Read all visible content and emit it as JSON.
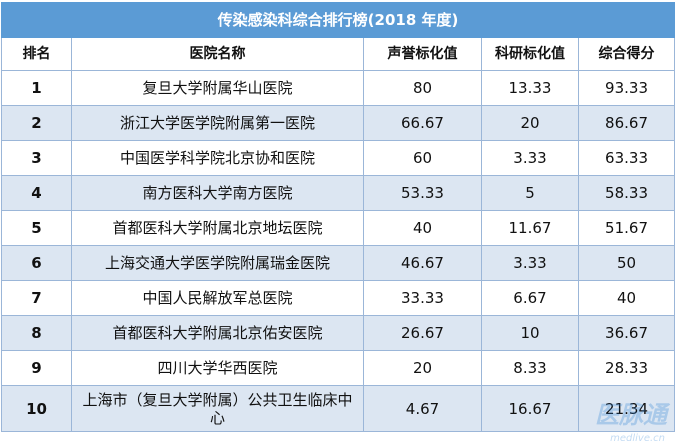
{
  "title": "传染感染科综合排行榜(2018 年度)",
  "headers": [
    "排名",
    "医院名称",
    "声誉标化值",
    "科研标化值",
    "综合得分"
  ],
  "rows": [
    {
      "rank": "1",
      "name": "复旦大学附属华山医院",
      "reputation": "80",
      "research": "13.33",
      "score": "93.33"
    },
    {
      "rank": "2",
      "name": "浙江大学医学院附属第一医院",
      "reputation": "66.67",
      "research": "20",
      "score": "86.67"
    },
    {
      "rank": "3",
      "name": "中国医学科学院北京协和医院",
      "reputation": "60",
      "research": "3.33",
      "score": "63.33"
    },
    {
      "rank": "4",
      "name": "南方医科大学南方医院",
      "reputation": "53.33",
      "research": "5",
      "score": "58.33"
    },
    {
      "rank": "5",
      "name": "首都医科大学附属北京地坛医院",
      "reputation": "40",
      "research": "11.67",
      "score": "51.67"
    },
    {
      "rank": "6",
      "name": "上海交通大学医学院附属瑞金医院",
      "reputation": "46.67",
      "research": "3.33",
      "score": "50"
    },
    {
      "rank": "7",
      "name": "中国人民解放军总医院",
      "reputation": "33.33",
      "research": "6.67",
      "score": "40"
    },
    {
      "rank": "8",
      "name": "首都医科大学附属北京佑安医院",
      "reputation": "26.67",
      "research": "10",
      "score": "36.67"
    },
    {
      "rank": "9",
      "name": "四川大学华西医院",
      "reputation": "20",
      "research": "8.33",
      "score": "28.33"
    },
    {
      "rank": "10",
      "name": "上海市（复旦大学附属）公共卫生临床中心",
      "reputation": "4.67",
      "research": "16.67",
      "score": "21.34"
    }
  ],
  "watermark": {
    "cn": "医脉通",
    "en": "medlive.cn"
  }
}
